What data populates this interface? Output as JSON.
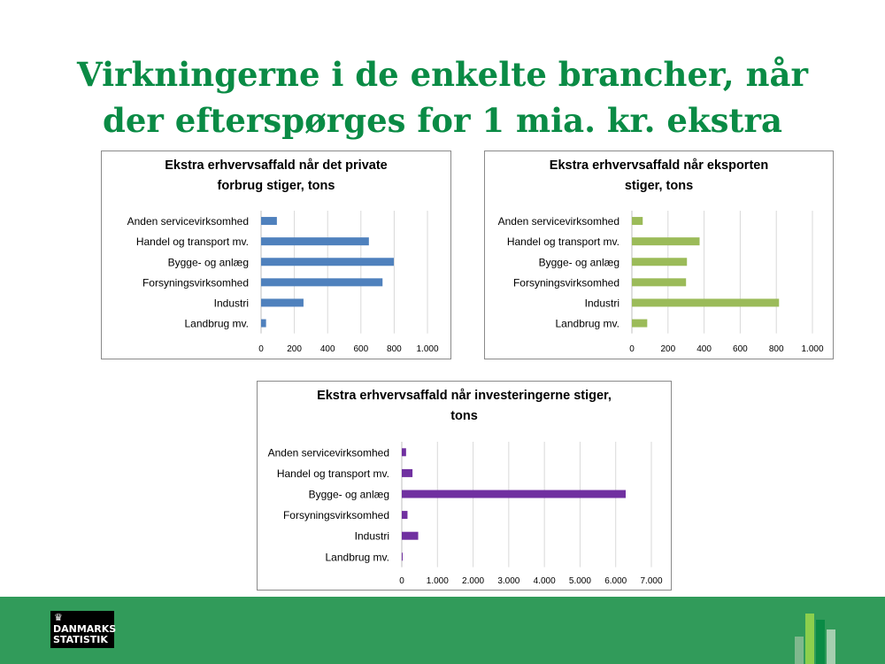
{
  "slide": {
    "title_line1": "Virkningerne i de enkelte brancher, når",
    "title_line2": "der efterspørges for 1 mia. kr. ekstra"
  },
  "logo": {
    "line1": "DANMARKS",
    "line2": "STATISTIK"
  },
  "colors": {
    "title": "#0a8b45",
    "footer": "#319b5a",
    "series_blue": "#4f81bd",
    "series_green": "#9bbb59",
    "series_purple": "#7030a0"
  },
  "chart_data": [
    {
      "type": "bar",
      "orientation": "horizontal",
      "title": "Ekstra erhvervsaffald når det private forbrug stiger, tons",
      "title_lines": [
        "Ekstra erhvervsaffald når det private",
        "forbrug stiger, tons"
      ],
      "categories": [
        "Anden servicevirksomhed",
        "Handel og transport mv.",
        "Bygge- og anlæg",
        "Forsyningsvirksomhed",
        "Industri",
        "Landbrug mv."
      ],
      "values": [
        95,
        648,
        798,
        730,
        255,
        30
      ],
      "xlim": [
        0,
        1000
      ],
      "ticks": [
        0,
        200,
        400,
        600,
        800,
        1000
      ],
      "tick_labels": [
        "0",
        "200",
        "400",
        "600",
        "800",
        "1.000"
      ],
      "color": "#4f81bd",
      "grid": true,
      "legend": "none"
    },
    {
      "type": "bar",
      "orientation": "horizontal",
      "title": "Ekstra erhvervsaffald når eksporten stiger, tons",
      "title_lines": [
        "Ekstra erhvervsaffald når eksporten",
        "stiger, tons"
      ],
      "categories": [
        "Anden servicevirksomhed",
        "Handel og transport mv.",
        "Bygge- og anlæg",
        "Forsyningsvirksomhed",
        "Industri",
        "Landbrug mv."
      ],
      "values": [
        60,
        375,
        305,
        300,
        815,
        85
      ],
      "xlim": [
        0,
        1000
      ],
      "ticks": [
        0,
        200,
        400,
        600,
        800,
        1000
      ],
      "tick_labels": [
        "0",
        "200",
        "400",
        "600",
        "800",
        "1.000"
      ],
      "color": "#9bbb59",
      "grid": true,
      "legend": "none"
    },
    {
      "type": "bar",
      "orientation": "horizontal",
      "title": "Ekstra erhvervsaffald når investeringerne stiger, tons",
      "title_lines": [
        "Ekstra erhvervsaffald når investeringerne stiger,",
        "tons"
      ],
      "categories": [
        "Anden servicevirksomhed",
        "Handel og transport mv.",
        "Bygge- og anlæg",
        "Forsyningsvirksomhed",
        "Industri",
        "Landbrug mv."
      ],
      "values": [
        120,
        300,
        6280,
        160,
        460,
        20
      ],
      "xlim": [
        0,
        7000
      ],
      "ticks": [
        0,
        1000,
        2000,
        3000,
        4000,
        5000,
        6000,
        7000
      ],
      "tick_labels": [
        "0",
        "1.000",
        "2.000",
        "3.000",
        "4.000",
        "5.000",
        "6.000",
        "7.000"
      ],
      "color": "#7030a0",
      "grid": true,
      "legend": "none"
    }
  ]
}
